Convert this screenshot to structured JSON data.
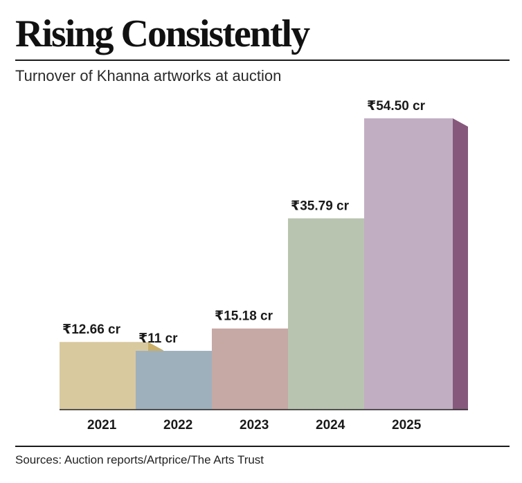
{
  "header": {
    "title": "Rising Consistently",
    "subtitle": "Turnover of Khanna artworks at auction"
  },
  "footer": {
    "source": "Sources: Auction reports/Artprice/The Arts Trust"
  },
  "chart_data": {
    "type": "bar",
    "style": "3d-stepped",
    "title": "Rising Consistently",
    "subtitle": "Turnover of Khanna artworks at auction",
    "categories": [
      "2021",
      "2022",
      "2023",
      "2024",
      "2025"
    ],
    "values": [
      12.66,
      11,
      15.18,
      35.79,
      54.5
    ],
    "value_labels": [
      "₹12.66 cr",
      "₹11 cr",
      "₹15.18 cr",
      "₹35.79 cr",
      "₹54.50 cr"
    ],
    "xlabel": "",
    "ylabel": "",
    "ylim": [
      0,
      54.5
    ],
    "grid": false,
    "legend": "none",
    "colors": {
      "front": [
        "#d9c99f",
        "#9fb0bd",
        "#c6a8a4",
        "#b9c4b0",
        "#c2aec3"
      ],
      "side": [
        "#c9af6a",
        "#5a7a8c",
        "#8e4e52",
        "#6b8a6b",
        "#86597c"
      ],
      "shadow": [
        "#b59872",
        "#7f97a7",
        "#ad7c7b",
        "#8ea58c",
        "#a37f9c"
      ]
    }
  }
}
